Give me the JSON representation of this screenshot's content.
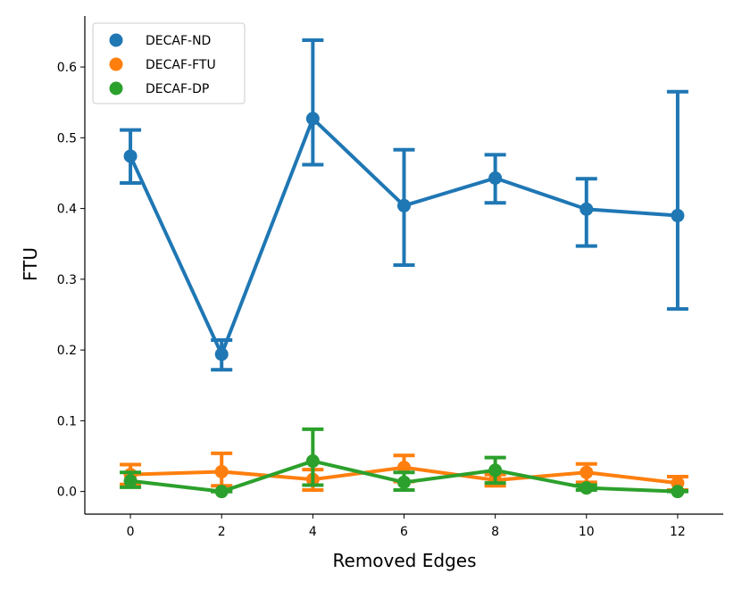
{
  "chart_data": {
    "type": "line",
    "title": "",
    "xlabel": "Removed Edges",
    "ylabel": "FTU",
    "x": [
      0,
      2,
      4,
      6,
      8,
      10,
      12
    ],
    "x_tick_labels": [
      "0",
      "2",
      "4",
      "6",
      "8",
      "10",
      "12"
    ],
    "y_ticks": [
      0.0,
      0.1,
      0.2,
      0.3,
      0.4,
      0.5,
      0.6
    ],
    "y_tick_labels": [
      "0.0",
      "0.1",
      "0.2",
      "0.3",
      "0.4",
      "0.5",
      "0.6"
    ],
    "ylim": [
      -0.032,
      0.672
    ],
    "grid": false,
    "legend_position": "top-left",
    "series": [
      {
        "name": "DECAF-ND",
        "color": "#1f77b4",
        "values": [
          0.474,
          0.194,
          0.527,
          0.404,
          0.443,
          0.399,
          0.39
        ],
        "lower": [
          0.436,
          0.172,
          0.462,
          0.32,
          0.408,
          0.347,
          0.258
        ],
        "upper": [
          0.511,
          0.214,
          0.638,
          0.483,
          0.476,
          0.442,
          0.565
        ]
      },
      {
        "name": "DECAF-FTU",
        "color": "#ff7f0e",
        "values": [
          0.024,
          0.028,
          0.017,
          0.034,
          0.016,
          0.027,
          0.012
        ],
        "lower": [
          0.01,
          0.008,
          0.002,
          0.014,
          0.008,
          0.013,
          0.002
        ],
        "upper": [
          0.038,
          0.054,
          0.031,
          0.051,
          0.024,
          0.039,
          0.021
        ]
      },
      {
        "name": "DECAF-DP",
        "color": "#2ca02c",
        "values": [
          0.015,
          0.0,
          0.043,
          0.013,
          0.03,
          0.005,
          0.0
        ],
        "lower": [
          0.006,
          0.0,
          0.009,
          0.002,
          0.012,
          0.002,
          0.0
        ],
        "upper": [
          0.027,
          0.0,
          0.088,
          0.027,
          0.048,
          0.009,
          0.001
        ]
      }
    ]
  }
}
